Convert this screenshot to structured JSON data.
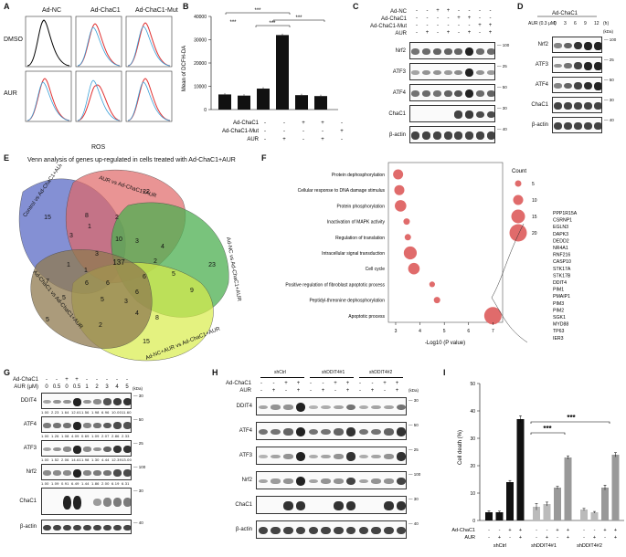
{
  "panels": {
    "A": {
      "label": "A",
      "cols": [
        "Ad-NC",
        "Ad-ChaC1",
        "Ad-ChaC1-Mut"
      ],
      "rows": [
        "DMSO",
        "AUR"
      ],
      "xlabel": "ROS"
    },
    "B": {
      "label": "B",
      "ylabel": "Mean of DCFH-DA",
      "sig": "***"
    },
    "C": {
      "label": "C",
      "treatments": [
        "Ad-NC",
        "Ad-ChaC1",
        "Ad-ChaC1-Mut",
        "AUR"
      ],
      "blots": [
        "Nrf2",
        "ATF3",
        "ATF4",
        "ChaC1",
        "β-actin"
      ],
      "kda": [
        "100",
        "25",
        "50",
        "30",
        "40"
      ]
    },
    "D": {
      "label": "D",
      "header": "Ad-ChaC1",
      "aur": "AUR (0.3 μM)",
      "times": [
        "0",
        "3",
        "6",
        "9",
        "12"
      ],
      "unit": "(h)",
      "kda_header": "(kDa)",
      "blots": [
        "Nrf2",
        "ATF3",
        "ATF4",
        "ChaC1",
        "β-actin"
      ],
      "kda": [
        "100",
        "25",
        "50",
        "30",
        "40"
      ]
    },
    "E": {
      "label": "E",
      "title": "Venn analysis of genes up-regulated in cells treated with Ad-ChaC1+AUR",
      "sets": [
        "Control vs Ad-ChaC1+AUR",
        "AUR vs Ad-ChaC1+AUR",
        "Ad-NC vs Ad-ChaC1+AUR",
        "Ad-NC+AUR vs Ad-ChaC1+AUR",
        "Ad-ChaC1 vs Ad-ChaC1+AUR"
      ],
      "numbers": [
        "15",
        "8",
        "22",
        "2",
        "3",
        "10",
        "4",
        "23",
        "3",
        "2",
        "5",
        "137",
        "6",
        "1",
        "7",
        "6",
        "5",
        "5",
        "6",
        "9",
        "1",
        "6",
        "3",
        "4",
        "5",
        "2",
        "8",
        "15",
        "1",
        "3"
      ]
    },
    "F": {
      "label": "F",
      "terms": [
        {
          "name": "Protein dephosphorylation",
          "x": 3.1,
          "count": 10
        },
        {
          "name": "Cellular response to DNA damage stimulus",
          "x": 3.15,
          "count": 10
        },
        {
          "name": "Protein phosphorylation",
          "x": 3.2,
          "count": 12
        },
        {
          "name": "Inactivation of MAPK activity",
          "x": 3.45,
          "count": 5
        },
        {
          "name": "Regulation of translation",
          "x": 3.5,
          "count": 5
        },
        {
          "name": "Intracellular signal transduction",
          "x": 3.6,
          "count": 14
        },
        {
          "name": "Cell cycle",
          "x": 3.75,
          "count": 12
        },
        {
          "name": "Positive regulation of fibroblast apoptotic process",
          "x": 4.5,
          "count": 4
        },
        {
          "name": "Peptidyl-threonine dephosphorylation",
          "x": 4.7,
          "count": 5
        },
        {
          "name": "Apoptotic process",
          "x": 7.0,
          "count": 20
        }
      ],
      "xlabel": "-Log10 (P value)",
      "xticks": [
        "3",
        "4",
        "5",
        "6",
        "7"
      ],
      "legend_title": "Count",
      "legend_values": [
        "5",
        "10",
        "15",
        "20"
      ],
      "genes": [
        "PPP1R15A",
        "CSRNP1",
        "EGLN3",
        "DAPK3",
        "DEDD2",
        "NR4A1",
        "RNF216",
        "CASP10",
        "STK17A",
        "STK17B",
        "DDIT4",
        "PIM1",
        "PMAIP1",
        "PIM3",
        "PIM2",
        "SGK1",
        "MYD88",
        "TP63",
        "IER3"
      ]
    },
    "G": {
      "label": "G",
      "adchac1": "Ad-ChaC1",
      "aur": "AUR (μM)",
      "doses": [
        "0",
        "0.5",
        "0",
        "0.5",
        "1",
        "2",
        "3",
        "4",
        "5"
      ],
      "kda_header": "(kDa)",
      "blots": [
        "DDIT4",
        "ATF4",
        "ATF3",
        "Nrf2",
        "ChaC1",
        "β-actin"
      ],
      "kda": [
        "30",
        "50",
        "25",
        "100",
        "30",
        "40"
      ],
      "quant": {
        "DDIT4": [
          "1.00",
          "2.23",
          "1.64",
          "12.61",
          "1.56",
          "1.98",
          "6.96",
          "10.00",
          "11.60"
        ],
        "ATF4": [
          "1.00",
          "1.26",
          "1.08",
          "4.09",
          "0.69",
          "1.09",
          "2.07",
          "2.86",
          "2.33"
        ],
        "ATF3": [
          "1.00",
          "1.52",
          "2.06",
          "14.61",
          "1.98",
          "1.30",
          "4.44",
          "12.39",
          "13.00"
        ],
        "Nrf2": [
          "1.00",
          "1.09",
          "0.91",
          "6.49",
          "1.44",
          "1.86",
          "2.00",
          "6.19",
          "6.31"
        ]
      }
    },
    "H": {
      "label": "H",
      "groups": [
        "shCtrl",
        "shDDIT4#1",
        "shDDIT4#2"
      ],
      "rows": [
        "Ad-ChaC1",
        "AUR"
      ],
      "kda_header": "(kDa)",
      "blots": [
        "DDIT4",
        "ATF4",
        "ATF3",
        "Nrf2",
        "ChaC1",
        "β-actin"
      ],
      "kda": [
        "30",
        "50",
        "25",
        "100",
        "30",
        "40"
      ]
    }
  },
  "chart_data": [
    {
      "type": "bar",
      "panel": "B",
      "title": "",
      "ylabel": "Mean of DCFH-DA",
      "categories": [
        "1",
        "2",
        "3",
        "4",
        "5",
        "6"
      ],
      "values": [
        6500,
        6000,
        9000,
        32000,
        6200,
        5800
      ],
      "ylim": [
        0,
        40000
      ],
      "yticks": [
        "0",
        "10000",
        "20000",
        "30000",
        "40000"
      ],
      "conditions": {
        "Ad-ChaC1": [
          "-",
          "-",
          "+",
          "+",
          "-",
          "-"
        ],
        "Ad-ChaC1-Mut": [
          "-",
          "-",
          "-",
          "-",
          "+",
          "+"
        ],
        "AUR": [
          "-",
          "+",
          "-",
          "+",
          "-",
          "+"
        ]
      }
    },
    {
      "type": "bar",
      "panel": "I",
      "title": "",
      "ylabel": "Cell death (%)",
      "groups": [
        "shCtrl",
        "shDDIT4#1",
        "shDDIT4#2"
      ],
      "values": [
        3,
        3,
        14,
        37,
        5,
        6,
        12,
        23,
        4,
        3,
        12,
        24
      ],
      "errors": [
        0.5,
        0.4,
        0.6,
        1.2,
        1.2,
        0.7,
        0.5,
        0.6,
        0.4,
        0.3,
        0.9,
        0.8
      ],
      "ylim": [
        0,
        50
      ],
      "yticks": [
        "0",
        "10",
        "20",
        "30",
        "40",
        "50"
      ],
      "sig": "***",
      "conditions": {
        "Ad-ChaC1": [
          "-",
          "-",
          "+",
          "+",
          "-",
          "-",
          "+",
          "+",
          "-",
          "-",
          "+",
          "+"
        ],
        "AUR": [
          "-",
          "+",
          "-",
          "+",
          "-",
          "+",
          "-",
          "+",
          "-",
          "+",
          "-",
          "+"
        ]
      }
    }
  ]
}
